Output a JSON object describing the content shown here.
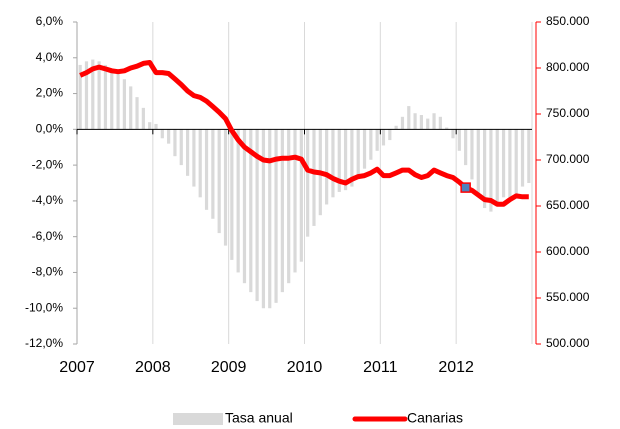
{
  "chart_data": {
    "type": "bar-line",
    "categories": [
      "2007",
      null,
      null,
      null,
      null,
      null,
      null,
      null,
      null,
      null,
      null,
      null,
      "2008",
      null,
      null,
      null,
      null,
      null,
      null,
      null,
      null,
      null,
      null,
      null,
      "2009",
      null,
      null,
      null,
      null,
      null,
      null,
      null,
      null,
      null,
      null,
      null,
      "2010",
      null,
      null,
      null,
      null,
      null,
      null,
      null,
      null,
      null,
      null,
      null,
      "2011",
      null,
      null,
      null,
      null,
      null,
      null,
      null,
      null,
      null,
      null,
      null,
      "2012",
      null,
      null,
      null,
      null,
      null,
      null,
      null,
      null,
      null,
      null,
      null
    ],
    "series": [
      {
        "name": "Tasa anual",
        "type": "bar",
        "color": "#d9d9d9",
        "axis": "y",
        "values": [
          3.6,
          3.8,
          3.9,
          3.8,
          3.6,
          3.3,
          3.1,
          2.8,
          2.4,
          1.8,
          1.2,
          0.4,
          0.3,
          -0.5,
          -0.8,
          -1.5,
          -2.0,
          -2.6,
          -3.2,
          -3.8,
          -4.5,
          -5.0,
          -5.8,
          -6.5,
          -7.3,
          -8.0,
          -8.6,
          -9.1,
          -9.6,
          -10.0,
          -10.0,
          -9.7,
          -9.1,
          -8.6,
          -8.0,
          -7.4,
          -6.0,
          -5.4,
          -4.8,
          -4.2,
          -3.8,
          -3.5,
          -3.4,
          -3.2,
          -2.6,
          -2.2,
          -1.7,
          -1.2,
          -0.9,
          -0.6,
          0.2,
          0.7,
          1.3,
          0.9,
          0.8,
          0.6,
          0.9,
          0.7,
          0.1,
          -0.5,
          -1.2,
          -2.0,
          -2.8,
          -3.6,
          -4.4,
          -4.6,
          -4.3,
          -3.8,
          -3.8,
          -3.6,
          -3.2,
          -3.0
        ]
      },
      {
        "name": "Canarias",
        "type": "line",
        "color": "#ff0000",
        "axis": "y2",
        "highlight": 61,
        "values": [
          792000,
          795000,
          799000,
          801000,
          799000,
          797000,
          796000,
          797000,
          800000,
          802000,
          805000,
          806000,
          795000,
          795000,
          794000,
          788000,
          782000,
          775000,
          770000,
          768000,
          764000,
          758000,
          752000,
          745000,
          732000,
          722000,
          714000,
          709000,
          704000,
          700000,
          699000,
          701000,
          702000,
          702000,
          703000,
          701000,
          689000,
          687000,
          686000,
          684000,
          680000,
          677000,
          675000,
          679000,
          682000,
          683000,
          686000,
          690000,
          683000,
          683000,
          686000,
          689000,
          689000,
          684000,
          681000,
          683000,
          689000,
          686000,
          683000,
          681000,
          676000,
          670000,
          667000,
          662000,
          657000,
          656000,
          652000,
          652000,
          657000,
          661000,
          660000,
          660000
        ]
      }
    ],
    "ylim": [
      -12,
      6
    ],
    "yticks": [
      {
        "value": -12,
        "label": "-12,0%"
      },
      {
        "value": -10,
        "label": "-10,0%"
      },
      {
        "value": -8,
        "label": "-8,0%"
      },
      {
        "value": -6,
        "label": "-6,0%"
      },
      {
        "value": -4,
        "label": "-4,0%"
      },
      {
        "value": -2,
        "label": "-2,0%"
      },
      {
        "value": 0,
        "label": "0,0%"
      },
      {
        "value": 2,
        "label": "2,0%"
      },
      {
        "value": 4,
        "label": "4,0%"
      },
      {
        "value": 6,
        "label": "6,0%"
      }
    ],
    "y2lim": [
      500000,
      850000
    ],
    "y2ticks": [
      {
        "value": 500000,
        "label": "500.000"
      },
      {
        "value": 550000,
        "label": "550.000"
      },
      {
        "value": 600000,
        "label": "600.000"
      },
      {
        "value": 650000,
        "label": "650.000"
      },
      {
        "value": 700000,
        "label": "700.000"
      },
      {
        "value": 750000,
        "label": "750.000"
      },
      {
        "value": 800000,
        "label": "800.000"
      },
      {
        "value": 850000,
        "label": "850.000"
      }
    ],
    "y2color": "#ff0000",
    "grid": "x",
    "legend": "bottom"
  }
}
